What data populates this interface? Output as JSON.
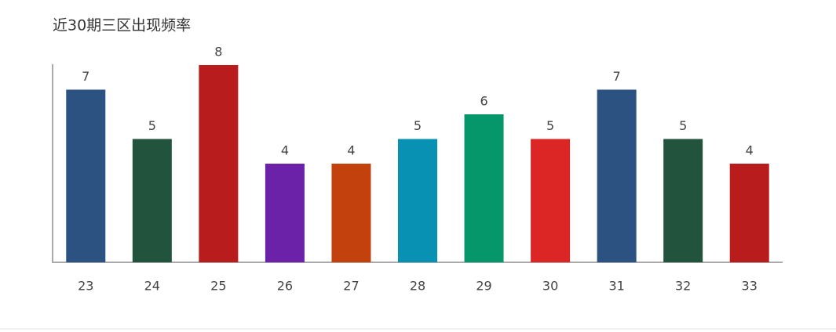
{
  "chart_data": {
    "type": "bar",
    "title": "近30期三区出现频率",
    "categories": [
      "23",
      "24",
      "25",
      "26",
      "27",
      "28",
      "29",
      "30",
      "31",
      "32",
      "33"
    ],
    "values": [
      7,
      5,
      8,
      4,
      4,
      5,
      6,
      5,
      7,
      5,
      4
    ],
    "colors": [
      "#2c5282",
      "#22543d",
      "#b91c1c",
      "#6b21a8",
      "#c2410c",
      "#0891b2",
      "#059669",
      "#dc2626",
      "#2c5282",
      "#22543d",
      "#b91c1c"
    ],
    "ylim": [
      0,
      8
    ]
  }
}
